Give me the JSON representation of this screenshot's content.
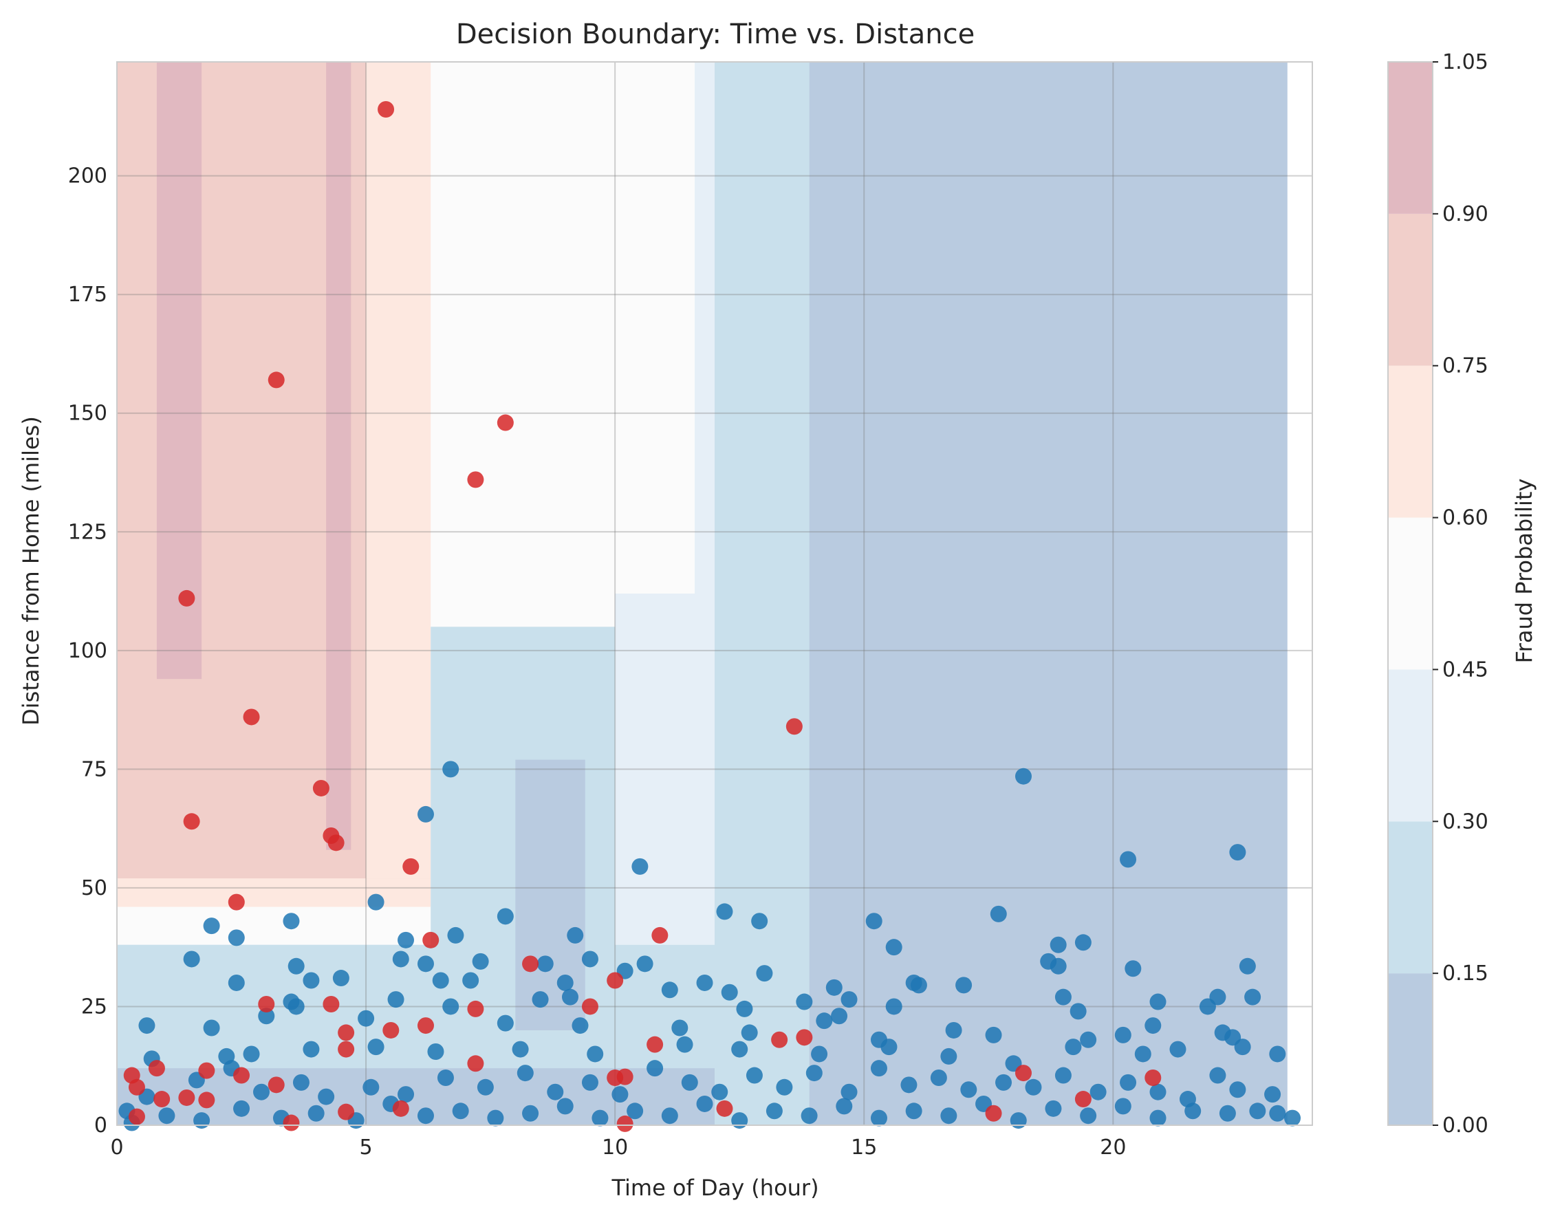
{
  "chart_data": {
    "type": "scatter",
    "title": "Decision Boundary: Time vs. Distance",
    "xlabel": "Time of Day (hour)",
    "ylabel": "Distance from Home (miles)",
    "xlim": [
      0,
      24
    ],
    "ylim": [
      0,
      224
    ],
    "x_ticks": [
      "0",
      "5",
      "10",
      "15",
      "20"
    ],
    "y_ticks": [
      "0",
      "25",
      "50",
      "75",
      "100",
      "125",
      "150",
      "175",
      "200"
    ],
    "grid": true,
    "colorbar": {
      "label": "Fraud Probability",
      "levels": [
        "0.00",
        "0.15",
        "0.30",
        "0.45",
        "0.60",
        "0.75",
        "0.90",
        "1.05"
      ],
      "colors": [
        "#b9cbe0",
        "#c9e0ec",
        "#e6eff7",
        "#fbfbfb",
        "#fde8e0",
        "#f1cfca",
        "#e1b9c1"
      ]
    },
    "decision_regions": [
      {
        "level": "0.75-0.90",
        "x": [
          0,
          6.3
        ],
        "y": [
          45,
          224
        ]
      },
      {
        "level": "0.90-1.05",
        "x": [
          0.8,
          1.7
        ],
        "y": [
          94,
          224
        ]
      },
      {
        "level": "0.90-1.05",
        "x": [
          4.2,
          4.7
        ],
        "y": [
          58,
          224
        ]
      },
      {
        "level": "0.60-0.75",
        "x": [
          5,
          6.3
        ],
        "y": [
          52,
          224
        ]
      },
      {
        "level": "0.60-0.75",
        "x": [
          0,
          6.3
        ],
        "y": [
          46,
          52
        ]
      },
      {
        "level": "0.60-0.75",
        "x": [
          6.3,
          7.6
        ],
        "y": [
          112,
          224
        ]
      },
      {
        "level": "0.60-0.75",
        "x": [
          9.7,
          10.4
        ],
        "y": [
          112,
          224
        ]
      },
      {
        "level": "0.45-0.60",
        "x": [
          6.3,
          11.6
        ],
        "y": [
          112,
          224
        ]
      },
      {
        "level": "0.45-0.60",
        "x": [
          6.3,
          12
        ],
        "y": [
          38,
          112
        ]
      },
      {
        "level": "0.45-0.60",
        "x": [
          0,
          6.3
        ],
        "y": [
          38,
          46
        ]
      },
      {
        "level": "0.30-0.45",
        "x": [
          11.6,
          12
        ],
        "y": [
          112,
          224
        ]
      },
      {
        "level": "0.30-0.45",
        "x": [
          0,
          12
        ],
        "y": [
          20,
          38
        ]
      },
      {
        "level": "0.30-0.45",
        "x": [
          10,
          12
        ],
        "y": [
          38,
          112
        ]
      },
      {
        "level": "0.15-0.30",
        "x": [
          12,
          13.9
        ],
        "y": [
          0,
          224
        ]
      },
      {
        "level": "0.15-0.30",
        "x": [
          6.3,
          10
        ],
        "y": [
          20,
          105
        ]
      },
      {
        "level": "0.15-0.30",
        "x": [
          0,
          12
        ],
        "y": [
          0,
          38
        ]
      },
      {
        "level": "0.00-0.15",
        "x": [
          13.9,
          23.5
        ],
        "y": [
          0,
          224
        ]
      },
      {
        "level": "0.00-0.15",
        "x": [
          0,
          12
        ],
        "y": [
          0,
          12
        ]
      },
      {
        "level": "0.00-0.15",
        "x": [
          8,
          9.4
        ],
        "y": [
          20,
          77
        ]
      }
    ],
    "series": [
      {
        "name": "Fraud",
        "color": "#d62728",
        "points": [
          [
            5.4,
            214
          ],
          [
            3.2,
            157
          ],
          [
            7.8,
            148
          ],
          [
            7.2,
            136
          ],
          [
            1.4,
            111
          ],
          [
            2.7,
            86
          ],
          [
            13.6,
            84
          ],
          [
            4.1,
            71
          ],
          [
            1.5,
            64
          ],
          [
            4.3,
            61
          ],
          [
            4.4,
            59.5
          ],
          [
            5.9,
            54.5
          ],
          [
            2.4,
            47
          ],
          [
            6.3,
            39
          ],
          [
            10.9,
            40
          ],
          [
            8.3,
            34
          ],
          [
            10,
            30.5
          ],
          [
            3,
            25.5
          ],
          [
            4.3,
            25.5
          ],
          [
            7.2,
            24.5
          ],
          [
            9.5,
            25
          ],
          [
            6.2,
            21
          ],
          [
            4.6,
            19.5
          ],
          [
            5.5,
            20
          ],
          [
            4.6,
            16
          ],
          [
            10.8,
            17
          ],
          [
            7.2,
            13
          ],
          [
            0.8,
            12
          ],
          [
            1.8,
            11.5
          ],
          [
            0.3,
            10.5
          ],
          [
            2.5,
            10.5
          ],
          [
            3.2,
            8.5
          ],
          [
            0.4,
            8
          ],
          [
            0.9,
            5.5
          ],
          [
            1.4,
            5.8
          ],
          [
            1.8,
            5.3
          ],
          [
            10,
            10
          ],
          [
            10.2,
            10.2
          ],
          [
            13.3,
            18
          ],
          [
            13.8,
            18.5
          ],
          [
            18.2,
            11
          ],
          [
            20.8,
            10
          ],
          [
            19.4,
            5.5
          ],
          [
            17.6,
            2.5
          ],
          [
            12.2,
            3.5
          ],
          [
            5.7,
            3.5
          ],
          [
            4.6,
            2.8
          ],
          [
            3.5,
            0.5
          ],
          [
            0.4,
            1.8
          ],
          [
            10.2,
            0.3
          ]
        ]
      },
      {
        "name": "Legitimate",
        "color": "#1f77b4",
        "points": [
          [
            6.7,
            75
          ],
          [
            18.2,
            73.5
          ],
          [
            6.2,
            65.5
          ],
          [
            10.5,
            54.5
          ],
          [
            20.3,
            56
          ],
          [
            22.5,
            57.5
          ],
          [
            5.2,
            47
          ],
          [
            12.2,
            45
          ],
          [
            17.7,
            44.5
          ],
          [
            7.8,
            44
          ],
          [
            3.5,
            43
          ],
          [
            12.9,
            43
          ],
          [
            15.2,
            43
          ],
          [
            1.9,
            42
          ],
          [
            2.4,
            39.5
          ],
          [
            5.8,
            39
          ],
          [
            6.8,
            40
          ],
          [
            9.2,
            40
          ],
          [
            18.9,
            38
          ],
          [
            19.4,
            38.5
          ],
          [
            15.6,
            37.5
          ],
          [
            1.5,
            35
          ],
          [
            5.7,
            35
          ],
          [
            6.2,
            34
          ],
          [
            7.3,
            34.5
          ],
          [
            8.6,
            34
          ],
          [
            9.5,
            35
          ],
          [
            10.6,
            34
          ],
          [
            3.6,
            33.5
          ],
          [
            18.7,
            34.5
          ],
          [
            18.9,
            33.5
          ],
          [
            20.4,
            33
          ],
          [
            22.7,
            33.5
          ],
          [
            10.2,
            32.5
          ],
          [
            13,
            32
          ],
          [
            3.9,
            30.5
          ],
          [
            4.5,
            31
          ],
          [
            6.5,
            30.5
          ],
          [
            7.1,
            30.5
          ],
          [
            2.4,
            30
          ],
          [
            9,
            30
          ],
          [
            11.1,
            28.5
          ],
          [
            11.8,
            30
          ],
          [
            16,
            30
          ],
          [
            16.1,
            29.5
          ],
          [
            17,
            29.5
          ],
          [
            14.4,
            29
          ],
          [
            19,
            27
          ],
          [
            22.8,
            27
          ],
          [
            3.5,
            26
          ],
          [
            5.6,
            26.5
          ],
          [
            8.5,
            26.5
          ],
          [
            9.1,
            27
          ],
          [
            12.3,
            28
          ],
          [
            13.8,
            26
          ],
          [
            14.7,
            26.5
          ],
          [
            20.9,
            26
          ],
          [
            22.1,
            27
          ],
          [
            3.6,
            25
          ],
          [
            6.7,
            25
          ],
          [
            12.6,
            24.5
          ],
          [
            15.6,
            25
          ],
          [
            19.3,
            24
          ],
          [
            21.9,
            25
          ],
          [
            1.9,
            20.5
          ],
          [
            0.6,
            21
          ],
          [
            3,
            23
          ],
          [
            5,
            22.5
          ],
          [
            7.8,
            21.5
          ],
          [
            9.3,
            21
          ],
          [
            11.3,
            20.5
          ],
          [
            12.7,
            19.5
          ],
          [
            14.2,
            22
          ],
          [
            14.5,
            23
          ],
          [
            15.3,
            18
          ],
          [
            16.8,
            20
          ],
          [
            17.6,
            19
          ],
          [
            19.5,
            18
          ],
          [
            20.2,
            19
          ],
          [
            20.8,
            21
          ],
          [
            22.2,
            19.5
          ],
          [
            22.4,
            18.5
          ],
          [
            22.6,
            16.5
          ],
          [
            23.3,
            15
          ],
          [
            0.7,
            14
          ],
          [
            2.2,
            14.5
          ],
          [
            2.7,
            15
          ],
          [
            3.9,
            16
          ],
          [
            5.2,
            16.5
          ],
          [
            6.4,
            15.5
          ],
          [
            8.1,
            16
          ],
          [
            9.6,
            15
          ],
          [
            11.4,
            17
          ],
          [
            12.5,
            16
          ],
          [
            14.1,
            15
          ],
          [
            15.5,
            16.5
          ],
          [
            16.7,
            14.5
          ],
          [
            18,
            13
          ],
          [
            19.2,
            16.5
          ],
          [
            20.6,
            15
          ],
          [
            21.3,
            16
          ],
          [
            0.2,
            3
          ],
          [
            0.6,
            6
          ],
          [
            1.6,
            9.5
          ],
          [
            2.3,
            12
          ],
          [
            2.9,
            7
          ],
          [
            3.7,
            9
          ],
          [
            4.2,
            6
          ],
          [
            5.1,
            8
          ],
          [
            5.8,
            6.5
          ],
          [
            6.6,
            10
          ],
          [
            7.4,
            8
          ],
          [
            8.2,
            11
          ],
          [
            8.8,
            7
          ],
          [
            9.5,
            9
          ],
          [
            10.1,
            6.5
          ],
          [
            10.8,
            12
          ],
          [
            11.5,
            9
          ],
          [
            12.1,
            7
          ],
          [
            12.8,
            10.5
          ],
          [
            13.4,
            8
          ],
          [
            14,
            11
          ],
          [
            14.7,
            7
          ],
          [
            15.3,
            12
          ],
          [
            15.9,
            8.5
          ],
          [
            16.5,
            10
          ],
          [
            17.1,
            7.5
          ],
          [
            17.8,
            9
          ],
          [
            18.4,
            8
          ],
          [
            19,
            10.5
          ],
          [
            19.7,
            7
          ],
          [
            20.3,
            9
          ],
          [
            20.9,
            7
          ],
          [
            21.5,
            5.5
          ],
          [
            22.1,
            10.5
          ],
          [
            22.5,
            7.5
          ],
          [
            23.2,
            6.5
          ],
          [
            0.3,
            0.5
          ],
          [
            1,
            2
          ],
          [
            1.7,
            1
          ],
          [
            2.5,
            3.5
          ],
          [
            3.3,
            1.5
          ],
          [
            4,
            2.5
          ],
          [
            4.8,
            1
          ],
          [
            5.5,
            4.5
          ],
          [
            6.2,
            2
          ],
          [
            6.9,
            3
          ],
          [
            7.6,
            1.5
          ],
          [
            8.3,
            2.5
          ],
          [
            9,
            4
          ],
          [
            9.7,
            1.5
          ],
          [
            10.4,
            3
          ],
          [
            11.1,
            2
          ],
          [
            11.8,
            4.5
          ],
          [
            12.5,
            1
          ],
          [
            13.2,
            3
          ],
          [
            13.9,
            2
          ],
          [
            14.6,
            4
          ],
          [
            15.3,
            1.5
          ],
          [
            16,
            3
          ],
          [
            16.7,
            2
          ],
          [
            17.4,
            4.5
          ],
          [
            18.1,
            1
          ],
          [
            18.8,
            3.5
          ],
          [
            19.5,
            2
          ],
          [
            20.2,
            4
          ],
          [
            20.9,
            1.5
          ],
          [
            21.6,
            3
          ],
          [
            22.3,
            2.5
          ],
          [
            22.9,
            3
          ],
          [
            23.6,
            1.5
          ],
          [
            23.3,
            2.5
          ]
        ]
      }
    ]
  }
}
